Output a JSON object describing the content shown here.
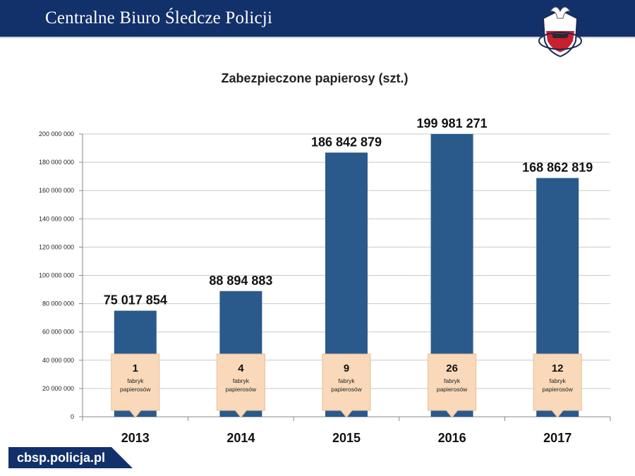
{
  "header": {
    "title": "Centralne Biuro Śledcze Policji"
  },
  "footer": {
    "url": "cbsp.policja.pl"
  },
  "colors": {
    "header_bg": "#12306a",
    "bar": "#2a5a8c",
    "callout": "#f9d9b9"
  },
  "chart_data": {
    "type": "bar",
    "title": "Zabezpieczone papierosy (szt.)",
    "xlabel": "",
    "ylabel": "",
    "ylim": [
      0,
      200000000
    ],
    "grid": true,
    "categories": [
      "2013",
      "2014",
      "2015",
      "2016",
      "2017"
    ],
    "values": [
      75017854,
      88894883,
      186842879,
      199981271,
      168862819
    ],
    "value_labels": [
      "75 017 854",
      "88 894 883",
      "186 842 879",
      "199 981 271",
      "168 862 819"
    ],
    "y_ticks": [
      0,
      20000000,
      40000000,
      60000000,
      80000000,
      100000000,
      120000000,
      140000000,
      160000000,
      180000000,
      200000000
    ],
    "y_tick_labels": [
      "0",
      "20 000 000",
      "40 000 000",
      "60 000 000",
      "80 000 000",
      "100 000 000",
      "120 000 000",
      "140 000 000",
      "160 000 000",
      "180 000 000",
      "200 000 000"
    ],
    "annotations": [
      {
        "count": "1",
        "line1": "fabryk",
        "line2": "papierosów"
      },
      {
        "count": "4",
        "line1": "fabryk",
        "line2": "papierosów"
      },
      {
        "count": "9",
        "line1": "fabryk",
        "line2": "papierosów"
      },
      {
        "count": "26",
        "line1": "fabryk",
        "line2": "papierosów"
      },
      {
        "count": "12",
        "line1": "fabryk",
        "line2": "papierosów"
      }
    ]
  }
}
